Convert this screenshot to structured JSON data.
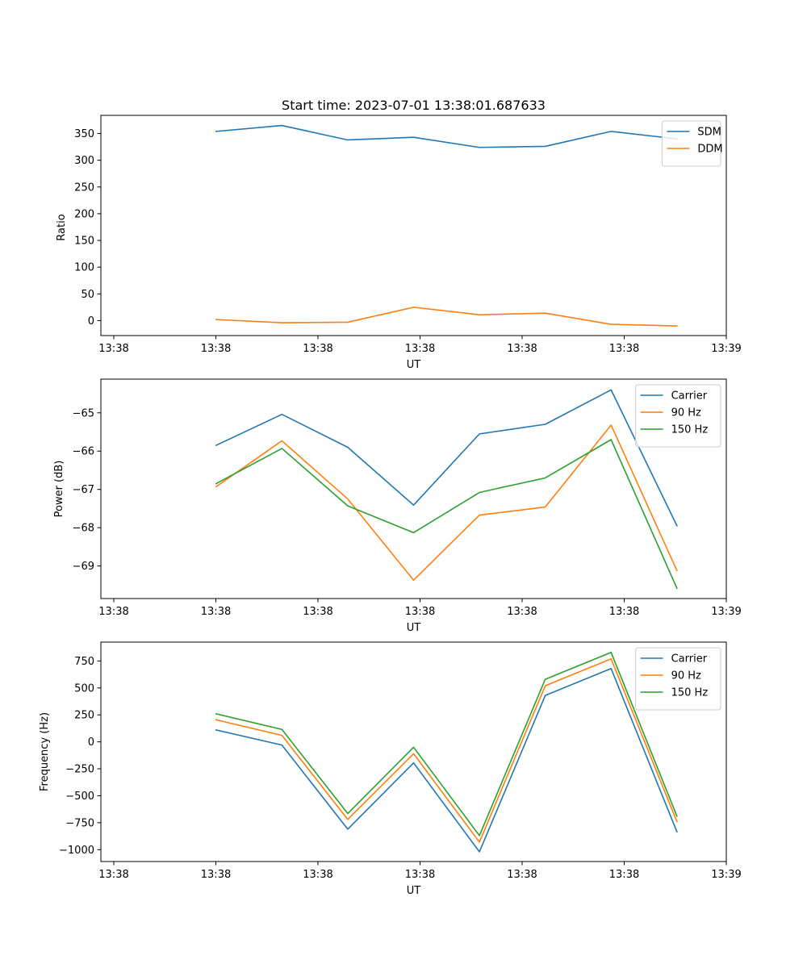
{
  "chart_data": [
    {
      "type": "line",
      "title": "Start time: 2023-07-01 13:38:01.687633",
      "xlabel": "UT",
      "ylabel": "Ratio",
      "x_ticks": [
        "13:38",
        "13:38",
        "13:38",
        "13:38",
        "13:38",
        "13:38",
        "13:39"
      ],
      "x": [
        1,
        2,
        3,
        4,
        5,
        6,
        7,
        8
      ],
      "xlim": [
        -0.75,
        8.75
      ],
      "ylim": [
        -28,
        384
      ],
      "y_ticks": [
        0,
        50,
        100,
        150,
        200,
        250,
        300,
        350
      ],
      "legend": "top-right",
      "series": [
        {
          "name": "SDM",
          "color": "#1f77b4",
          "values": [
            354,
            365,
            338,
            343,
            324,
            326,
            354,
            340
          ]
        },
        {
          "name": "DDM",
          "color": "#ff7f0e",
          "values": [
            2,
            -4,
            -3,
            25,
            11,
            14,
            -7,
            -10
          ]
        }
      ]
    },
    {
      "type": "line",
      "title": "",
      "xlabel": "UT",
      "ylabel": "Power (dB)",
      "x_ticks": [
        "13:38",
        "13:38",
        "13:38",
        "13:38",
        "13:38",
        "13:38",
        "13:39"
      ],
      "x": [
        1,
        2,
        3,
        4,
        5,
        6,
        7,
        8
      ],
      "xlim": [
        -0.75,
        8.75
      ],
      "ylim": [
        -69.85,
        -64.12
      ],
      "y_ticks": [
        -69,
        -68,
        -67,
        -66,
        -65
      ],
      "legend": "top-right",
      "series": [
        {
          "name": "Carrier",
          "color": "#1f77b4",
          "values": [
            -65.85,
            -65.04,
            -65.9,
            -67.41,
            -65.55,
            -65.3,
            -64.4,
            -67.95
          ]
        },
        {
          "name": "90 Hz",
          "color": "#ff7f0e",
          "values": [
            -66.93,
            -65.73,
            -67.25,
            -69.37,
            -67.67,
            -67.46,
            -65.32,
            -69.12
          ]
        },
        {
          "name": "150 Hz",
          "color": "#2ca02c",
          "values": [
            -66.85,
            -65.93,
            -67.43,
            -68.13,
            -67.08,
            -66.7,
            -65.7,
            -69.58
          ]
        }
      ]
    },
    {
      "type": "line",
      "title": "",
      "xlabel": "UT",
      "ylabel": "Frequency (Hz)",
      "x_ticks": [
        "13:38",
        "13:38",
        "13:38",
        "13:38",
        "13:38",
        "13:38",
        "13:39"
      ],
      "x": [
        1,
        2,
        3,
        4,
        5,
        6,
        7,
        8
      ],
      "xlim": [
        -0.75,
        8.75
      ],
      "ylim": [
        -1110,
        925
      ],
      "y_ticks": [
        -1000,
        -750,
        -500,
        -250,
        0,
        250,
        500,
        750
      ],
      "legend": "top-right",
      "series": [
        {
          "name": "Carrier",
          "color": "#1f77b4",
          "values": [
            110,
            -30,
            -810,
            -195,
            -1020,
            430,
            680,
            -835
          ]
        },
        {
          "name": "90 Hz",
          "color": "#ff7f0e",
          "values": [
            205,
            60,
            -720,
            -110,
            -930,
            520,
            770,
            -740
          ]
        },
        {
          "name": "150 Hz",
          "color": "#2ca02c",
          "values": [
            260,
            115,
            -665,
            -50,
            -870,
            580,
            830,
            -690
          ]
        }
      ]
    }
  ]
}
